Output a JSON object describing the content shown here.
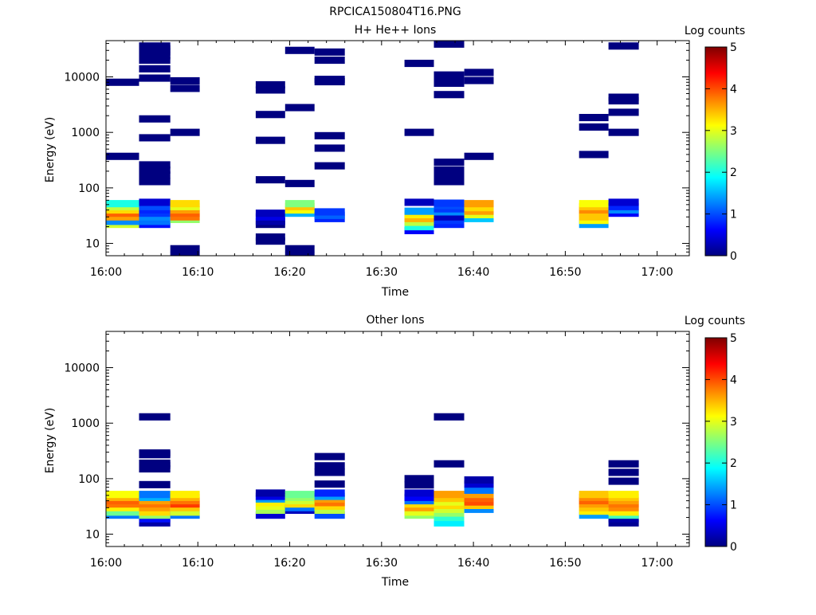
{
  "figure_title": "RPCICA150804T16.PNG",
  "chart_data": [
    {
      "type": "heatmap",
      "title": "H+ He++ Ions",
      "xlabel": "Time",
      "ylabel": "Energy (eV)",
      "x_ticks": [
        "16:00",
        "16:10",
        "16:20",
        "16:30",
        "16:40",
        "16:50",
        "17:00"
      ],
      "x_tick_minutes": [
        0,
        10,
        20,
        30,
        40,
        50,
        60
      ],
      "xlim_minutes": [
        0,
        63.5
      ],
      "y_scale": "log",
      "ylim": [
        6,
        45000
      ],
      "y_ticks": [
        10,
        100,
        1000,
        10000
      ],
      "y_tick_labels": [
        "10",
        "100",
        "1000",
        "10000"
      ],
      "colorbar": {
        "label": "Log counts",
        "range": [
          0,
          5
        ],
        "ticks": [
          "0",
          "1",
          "2",
          "3",
          "4",
          "5"
        ]
      },
      "columns": [
        {
          "start_min": 0.0,
          "end_min": 3.6,
          "cells": [
            [
              22,
              2.9
            ],
            [
              25,
              1.3
            ],
            [
              30,
              3.6
            ],
            [
              35,
              3.9
            ],
            [
              40,
              3.3
            ],
            [
              46,
              2.8
            ],
            [
              52,
              2.0
            ],
            [
              370,
              0
            ],
            [
              8000,
              0
            ]
          ]
        },
        {
          "start_min": 3.6,
          "end_min": 7.0,
          "cells": [
            [
              22,
              0.7
            ],
            [
              25,
              1.2
            ],
            [
              30,
              1.3
            ],
            [
              35,
              0.9
            ],
            [
              40,
              0.8
            ],
            [
              46,
              1.0
            ],
            [
              55,
              0.4
            ],
            [
              130,
              0
            ],
            [
              170,
              0
            ],
            [
              210,
              0
            ],
            [
              260,
              0
            ],
            [
              800,
              0
            ],
            [
              1750,
              0
            ],
            [
              9500,
              0
            ],
            [
              14000,
              0
            ],
            [
              20000,
              0
            ],
            [
              24000,
              0
            ],
            [
              28000,
              0
            ],
            [
              32000,
              0
            ],
            [
              36000,
              0
            ]
          ]
        },
        {
          "start_min": 7.0,
          "end_min": 10.2,
          "cells": [
            [
              6,
              0
            ],
            [
              8,
              0
            ],
            [
              27,
              2.6
            ],
            [
              30,
              3.8
            ],
            [
              35,
              3.9
            ],
            [
              40,
              3.6
            ],
            [
              46,
              3.0
            ],
            [
              52,
              3.3
            ],
            [
              1000,
              0
            ],
            [
              6200,
              0
            ],
            [
              8500,
              0
            ]
          ]
        },
        {
          "start_min": 16.3,
          "end_min": 19.5,
          "cells": [
            [
              11,
              0
            ],
            [
              13,
              0
            ],
            [
              22,
              0
            ],
            [
              25,
              0.2
            ],
            [
              30,
              0.5
            ],
            [
              35,
              0.3
            ],
            [
              140,
              0
            ],
            [
              720,
              0
            ],
            [
              2100,
              0
            ],
            [
              5800,
              0
            ],
            [
              7200,
              0
            ]
          ]
        },
        {
          "start_min": 19.5,
          "end_min": 22.7,
          "cells": [
            [
              6,
              0
            ],
            [
              8,
              0
            ],
            [
              35,
              1.5
            ],
            [
              40,
              3.1
            ],
            [
              46,
              3.4
            ],
            [
              52,
              2.5
            ],
            [
              120,
              0
            ],
            [
              2800,
              0
            ],
            [
              30000,
              0
            ]
          ]
        },
        {
          "start_min": 22.7,
          "end_min": 26.0,
          "cells": [
            [
              28,
              0.8
            ],
            [
              32,
              1.1
            ],
            [
              37,
              0.9
            ],
            [
              250,
              0
            ],
            [
              520,
              0
            ],
            [
              870,
              0
            ],
            [
              8200,
              0
            ],
            [
              9000,
              0
            ],
            [
              20000,
              0
            ],
            [
              28000,
              0
            ]
          ]
        },
        {
          "start_min": 32.5,
          "end_min": 35.7,
          "cells": [
            [
              17,
              0.6
            ],
            [
              20,
              2.0
            ],
            [
              24,
              2.8
            ],
            [
              28,
              3.5
            ],
            [
              33,
              3.2
            ],
            [
              38,
              1.4
            ],
            [
              55,
              0.3
            ],
            [
              1000,
              0
            ],
            [
              17500,
              0
            ]
          ]
        },
        {
          "start_min": 35.7,
          "end_min": 39.0,
          "cells": [
            [
              22,
              0.8
            ],
            [
              26,
              0.9
            ],
            [
              30,
              0.3
            ],
            [
              37,
              1.3
            ],
            [
              42,
              0.9
            ],
            [
              48,
              1.0
            ],
            [
              53,
              0.9
            ],
            [
              130,
              0
            ],
            [
              160,
              0
            ],
            [
              210,
              0
            ],
            [
              290,
              0
            ],
            [
              4800,
              0
            ],
            [
              7700,
              0
            ],
            [
              9000,
              0
            ],
            [
              10800,
              0
            ],
            [
              39000,
              0
            ]
          ]
        },
        {
          "start_min": 39.0,
          "end_min": 42.2,
          "cells": [
            [
              28,
              1.6
            ],
            [
              33,
              3.0
            ],
            [
              38,
              3.6
            ],
            [
              44,
              3.3
            ],
            [
              52,
              3.6
            ],
            [
              370,
              0
            ],
            [
              8600,
              0
            ],
            [
              12000,
              0
            ]
          ]
        },
        {
          "start_min": 51.5,
          "end_min": 54.7,
          "cells": [
            [
              22,
              1.4
            ],
            [
              26,
              3.1
            ],
            [
              30,
              3.4
            ],
            [
              35,
              3.4
            ],
            [
              40,
              3.7
            ],
            [
              46,
              3.4
            ],
            [
              52,
              3.1
            ],
            [
              400,
              0
            ],
            [
              1250,
              0
            ],
            [
              1850,
              0
            ]
          ]
        },
        {
          "start_min": 54.7,
          "end_min": 58.0,
          "cells": [
            [
              35,
              0.6
            ],
            [
              40,
              1.3
            ],
            [
              46,
              0.8
            ],
            [
              55,
              0.4
            ],
            [
              1000,
              0
            ],
            [
              2300,
              0
            ],
            [
              3700,
              0
            ],
            [
              4300,
              0
            ],
            [
              36000,
              0
            ]
          ]
        }
      ]
    },
    {
      "type": "heatmap",
      "title": "Other Ions",
      "xlabel": "Time",
      "ylabel": "Energy (eV)",
      "x_ticks": [
        "16:00",
        "16:10",
        "16:20",
        "16:30",
        "16:40",
        "16:50",
        "17:00"
      ],
      "x_tick_minutes": [
        0,
        10,
        20,
        30,
        40,
        50,
        60
      ],
      "xlim_minutes": [
        0,
        63.5
      ],
      "y_scale": "log",
      "ylim": [
        6,
        45000
      ],
      "y_ticks": [
        10,
        100,
        1000,
        10000
      ],
      "y_tick_labels": [
        "10",
        "100",
        "1000",
        "10000"
      ],
      "colorbar": {
        "label": "Log counts",
        "range": [
          0,
          5
        ],
        "ticks": [
          "0",
          "1",
          "2",
          "3",
          "4",
          "5"
        ]
      },
      "columns": [
        {
          "start_min": 0.0,
          "end_min": 3.6,
          "cells": [
            [
              22,
              1.2
            ],
            [
              25,
              2.4
            ],
            [
              30,
              3.2
            ],
            [
              35,
              3.8
            ],
            [
              40,
              3.9
            ],
            [
              46,
              3.5
            ],
            [
              52,
              3.1
            ]
          ]
        },
        {
          "start_min": 3.6,
          "end_min": 7.0,
          "cells": [
            [
              16,
              0.2
            ],
            [
              19,
              0.7
            ],
            [
              22,
              2.6
            ],
            [
              25,
              3.3
            ],
            [
              30,
              3.6
            ],
            [
              35,
              3.8
            ],
            [
              40,
              3.6
            ],
            [
              46,
              1.5
            ],
            [
              52,
              1.2
            ],
            [
              78,
              0
            ],
            [
              150,
              0
            ],
            [
              175,
              0
            ],
            [
              190,
              0
            ],
            [
              270,
              0
            ],
            [
              290,
              0
            ],
            [
              1300,
              0
            ]
          ]
        },
        {
          "start_min": 7.0,
          "end_min": 10.2,
          "cells": [
            [
              22,
              1.2
            ],
            [
              25,
              2.9
            ],
            [
              30,
              3.4
            ],
            [
              35,
              4.1
            ],
            [
              40,
              3.8
            ],
            [
              46,
              3.5
            ],
            [
              52,
              3.2
            ]
          ]
        },
        {
          "start_min": 16.3,
          "end_min": 19.5,
          "cells": [
            [
              22,
              0.4
            ],
            [
              27,
              2.7
            ],
            [
              32,
              3.0
            ],
            [
              37,
              3.2
            ],
            [
              43,
              1.4
            ],
            [
              48,
              0.5
            ],
            [
              55,
              0.2
            ]
          ]
        },
        {
          "start_min": 19.5,
          "end_min": 22.7,
          "cells": [
            [
              27,
              0.3
            ],
            [
              30,
              1.2
            ],
            [
              35,
              3.3
            ],
            [
              40,
              2.9
            ],
            [
              46,
              2.6
            ],
            [
              52,
              2.4
            ]
          ]
        },
        {
          "start_min": 22.7,
          "end_min": 26.0,
          "cells": [
            [
              22,
              1.0
            ],
            [
              27,
              2.8
            ],
            [
              32,
              3.3
            ],
            [
              37,
              3.8
            ],
            [
              43,
              3.6
            ],
            [
              48,
              1.4
            ],
            [
              55,
              0.8
            ],
            [
              80,
              0
            ],
            [
              130,
              0
            ],
            [
              170,
              0
            ],
            [
              250,
              0
            ]
          ]
        },
        {
          "start_min": 32.5,
          "end_min": 35.7,
          "cells": [
            [
              22,
              2.6
            ],
            [
              25,
              3.0
            ],
            [
              30,
              3.6
            ],
            [
              35,
              3.3
            ],
            [
              40,
              1.2
            ],
            [
              46,
              0.6
            ],
            [
              55,
              0.4
            ],
            [
              77,
              0
            ],
            [
              100,
              0
            ]
          ]
        },
        {
          "start_min": 35.7,
          "end_min": 39.0,
          "cells": [
            [
              16,
              1.8
            ],
            [
              20,
              2.1
            ],
            [
              24,
              2.6
            ],
            [
              28,
              2.9
            ],
            [
              33,
              3.3
            ],
            [
              38,
              3.0
            ],
            [
              44,
              3.4
            ],
            [
              52,
              3.6
            ],
            [
              185,
              0
            ],
            [
              1300,
              0
            ]
          ]
        },
        {
          "start_min": 39.0,
          "end_min": 42.2,
          "cells": [
            [
              28,
              1.3
            ],
            [
              33,
              3.4
            ],
            [
              38,
              4.0
            ],
            [
              44,
              3.9
            ],
            [
              52,
              3.6
            ],
            [
              62,
              1.2
            ],
            [
              80,
              0.4
            ],
            [
              95,
              0.2
            ]
          ]
        },
        {
          "start_min": 51.5,
          "end_min": 54.7,
          "cells": [
            [
              22,
              1.4
            ],
            [
              26,
              3.2
            ],
            [
              30,
              3.4
            ],
            [
              35,
              3.6
            ],
            [
              40,
              3.9
            ],
            [
              46,
              3.7
            ],
            [
              52,
              3.4
            ]
          ]
        },
        {
          "start_min": 54.7,
          "end_min": 58.0,
          "cells": [
            [
              16,
              0.1
            ],
            [
              19,
              0.2
            ],
            [
              22,
              2.2
            ],
            [
              25,
              3.2
            ],
            [
              30,
              3.7
            ],
            [
              35,
              3.8
            ],
            [
              40,
              3.6
            ],
            [
              46,
              3.4
            ],
            [
              52,
              3.2
            ],
            [
              90,
              0
            ],
            [
              130,
              0
            ],
            [
              185,
              0
            ]
          ]
        }
      ]
    }
  ]
}
